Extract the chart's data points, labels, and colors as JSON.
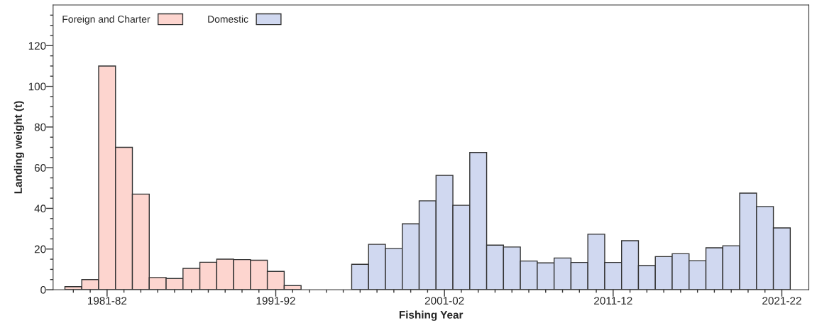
{
  "chart_data": {
    "type": "bar",
    "xlabel": "Fishing Year",
    "ylabel": "Landing weight (t)",
    "categories": [
      null,
      null,
      "1981-82",
      null,
      null,
      null,
      null,
      null,
      null,
      null,
      null,
      null,
      "1991-92",
      null,
      null,
      null,
      null,
      null,
      null,
      null,
      null,
      null,
      "2001-02",
      null,
      null,
      null,
      null,
      null,
      null,
      null,
      null,
      null,
      "2011-12",
      null,
      null,
      null,
      null,
      null,
      null,
      null,
      null,
      null,
      "2021-22"
    ],
    "series": [
      {
        "name": "Foreign and Charter",
        "color": "#fdd5cf",
        "values": [
          1.5,
          5,
          110,
          70,
          47,
          6,
          5.5,
          10.5,
          13.5,
          15,
          14.8,
          14.5,
          9,
          2,
          null,
          null,
          null,
          null,
          null,
          null,
          null,
          null,
          null,
          null,
          null,
          null,
          null,
          null,
          null,
          null,
          null,
          null,
          null,
          null,
          null,
          null,
          null,
          null,
          null,
          null,
          null,
          null,
          null
        ]
      },
      {
        "name": "Domestic",
        "color": "#d0d8f0",
        "values": [
          null,
          null,
          null,
          null,
          null,
          null,
          null,
          null,
          null,
          null,
          null,
          null,
          null,
          null,
          null,
          null,
          null,
          12.5,
          22.3,
          20.3,
          32.4,
          43.7,
          56.2,
          41.5,
          67.5,
          21.9,
          21,
          14.1,
          13.2,
          15.6,
          13.4,
          27.3,
          13.4,
          24.1,
          11.9,
          16.3,
          17.7,
          14.3,
          20.6,
          21.6,
          47.5,
          40.9,
          30.4
        ]
      }
    ],
    "ylim": [
      0,
      140
    ],
    "yticks": [
      0,
      {
        "value": 5,
        "label": null
      },
      {
        "value": 10,
        "label": null
      },
      {
        "value": 15,
        "label": null
      },
      20,
      {
        "value": 25,
        "label": null
      },
      {
        "value": 30,
        "label": null
      },
      {
        "value": 35,
        "label": null
      },
      40,
      {
        "value": 45,
        "label": null
      },
      {
        "value": 50,
        "label": null
      },
      {
        "value": 55,
        "label": null
      },
      60,
      {
        "value": 65,
        "label": null
      },
      {
        "value": 70,
        "label": null
      },
      {
        "value": 75,
        "label": null
      },
      80,
      {
        "value": 85,
        "label": null
      },
      {
        "value": 90,
        "label": null
      },
      {
        "value": 95,
        "label": null
      },
      100,
      {
        "value": 105,
        "label": null
      },
      {
        "value": 110,
        "label": null
      },
      {
        "value": 115,
        "label": null
      },
      120,
      {
        "value": 125,
        "label": null
      },
      {
        "value": 130,
        "label": null
      },
      {
        "value": 135,
        "label": null
      }
    ],
    "legend": "top left",
    "grid": false
  }
}
